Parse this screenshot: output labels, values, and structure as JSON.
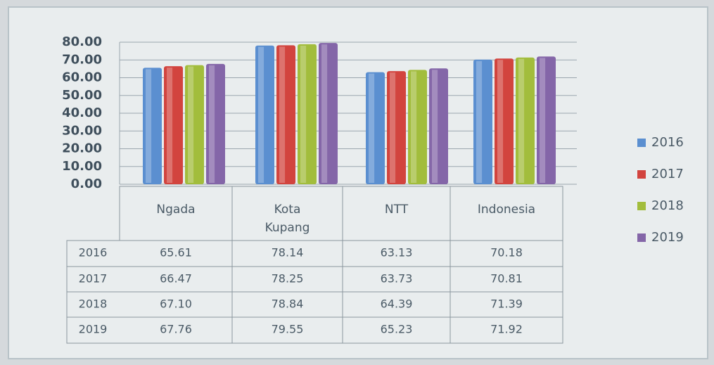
{
  "chart_data": {
    "type": "bar",
    "categories": [
      "Ngada",
      "Kota Kupang",
      "NTT",
      "Indonesia"
    ],
    "series": [
      {
        "name": "2016",
        "color": "#5b8fd0",
        "values": [
          65.61,
          78.14,
          63.13,
          70.18
        ],
        "value_labels": [
          "65.61",
          "78.14",
          "63.13",
          "70.18"
        ]
      },
      {
        "name": "2017",
        "color": "#d2443e",
        "values": [
          66.47,
          78.25,
          63.73,
          70.81
        ],
        "value_labels": [
          "66.47",
          "78.25",
          "63.73",
          "70.81"
        ]
      },
      {
        "name": "2018",
        "color": "#a2bd3c",
        "values": [
          67.1,
          78.84,
          64.39,
          71.39
        ],
        "value_labels": [
          "67.10",
          "78.84",
          "64.39",
          "71.39"
        ]
      },
      {
        "name": "2019",
        "color": "#8466a8",
        "values": [
          67.76,
          79.55,
          65.23,
          71.92
        ],
        "value_labels": [
          "67.76",
          "79.55",
          "65.23",
          "71.92"
        ]
      }
    ],
    "ylim": [
      0,
      80
    ],
    "yticks": [
      {
        "value": 0,
        "label": "0.00"
      },
      {
        "value": 10,
        "label": "10.00"
      },
      {
        "value": 20,
        "label": "20.00"
      },
      {
        "value": 30,
        "label": "30.00"
      },
      {
        "value": 40,
        "label": "40.00"
      },
      {
        "value": 50,
        "label": "50.00"
      },
      {
        "value": 60,
        "label": "60.00"
      },
      {
        "value": 70,
        "label": "70.00"
      },
      {
        "value": 80,
        "label": "80.00"
      }
    ],
    "grid": true,
    "legend": "right"
  }
}
